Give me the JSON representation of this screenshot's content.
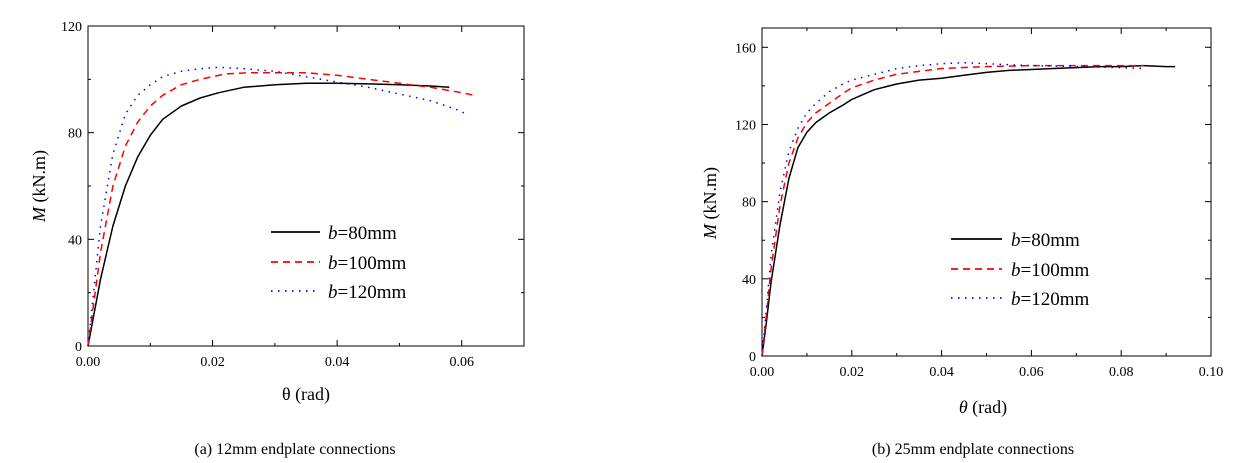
{
  "figure": {
    "captions": [
      "(a) 12mm endplate connections",
      "(b) 25mm endplate connections"
    ]
  },
  "legend_prefix": "b",
  "chart_data": [
    {
      "type": "line",
      "caption": "(a) 12mm endplate connections",
      "xlabel_symbol": "θ",
      "xlabel": " (rad)",
      "ylabel_symbol": "M",
      "ylabel": " (kN.m)",
      "xlim": [
        0,
        0.07
      ],
      "ylim": [
        0,
        120
      ],
      "xticks": [
        0,
        0.02,
        0.04,
        0.06
      ],
      "xtick_labels": [
        "0.00",
        "0.02",
        "0.04",
        "0.06"
      ],
      "yticks": [
        0,
        40,
        80,
        120
      ],
      "ytick_labels": [
        "0",
        "40",
        "80",
        "120"
      ],
      "grid": false,
      "legend_position": "center-right",
      "series": [
        {
          "name": "=80mm",
          "color": "#000000",
          "style": "solid",
          "x": [
            0,
            0.002,
            0.004,
            0.006,
            0.008,
            0.01,
            0.012,
            0.015,
            0.018,
            0.021,
            0.025,
            0.03,
            0.035,
            0.04,
            0.045,
            0.05,
            0.055,
            0.058
          ],
          "y": [
            0,
            25,
            45,
            60,
            71,
            79,
            85,
            90,
            93,
            95,
            97,
            98,
            98.5,
            98.5,
            98.3,
            98,
            97.5,
            97
          ]
        },
        {
          "name": "=100mm",
          "color": "#ff0000",
          "style": "dashed",
          "x": [
            0,
            0.002,
            0.004,
            0.006,
            0.008,
            0.01,
            0.012,
            0.015,
            0.018,
            0.022,
            0.026,
            0.03,
            0.035,
            0.04,
            0.045,
            0.05,
            0.055,
            0.06,
            0.062
          ],
          "y": [
            0,
            35,
            60,
            75,
            84,
            90,
            94,
            98,
            100,
            102,
            102.5,
            102.5,
            102.5,
            101.5,
            100,
            98.5,
            97,
            95,
            94
          ]
        },
        {
          "name": "=120mm",
          "color": "#0000ff",
          "style": "dotted",
          "x": [
            0,
            0.002,
            0.004,
            0.006,
            0.008,
            0.01,
            0.012,
            0.015,
            0.018,
            0.021,
            0.025,
            0.03,
            0.035,
            0.04,
            0.045,
            0.05,
            0.055,
            0.06,
            0.061
          ],
          "y": [
            0,
            45,
            72,
            87,
            94,
            98,
            101,
            103,
            104,
            104.5,
            104,
            103,
            101,
            99,
            97,
            94.5,
            92,
            88,
            86
          ]
        }
      ]
    },
    {
      "type": "line",
      "caption": "(b) 25mm endplate connections",
      "xlabel_symbol": "θ",
      "xlabel": " (rad)",
      "ylabel_symbol": "M",
      "ylabel": " (kN.m)",
      "xlim": [
        0,
        0.1
      ],
      "ylim": [
        0,
        170
      ],
      "xticks": [
        0,
        0.02,
        0.04,
        0.06,
        0.08,
        0.1
      ],
      "xtick_labels": [
        "0.00",
        "0.02",
        "0.04",
        "0.06",
        "0.08",
        "0.10"
      ],
      "yticks": [
        0,
        40,
        80,
        120,
        160
      ],
      "ytick_labels": [
        "0",
        "40",
        "80",
        "120",
        "160"
      ],
      "grid": false,
      "legend_position": "center-right",
      "series": [
        {
          "name": "=80mm",
          "color": "#000000",
          "style": "solid",
          "x": [
            0,
            0.001,
            0.002,
            0.004,
            0.006,
            0.008,
            0.01,
            0.012,
            0.015,
            0.018,
            0.02,
            0.025,
            0.03,
            0.035,
            0.04,
            0.045,
            0.05,
            0.055,
            0.06,
            0.065,
            0.07,
            0.075,
            0.08,
            0.085,
            0.09,
            0.092
          ],
          "y": [
            0,
            18,
            38,
            68,
            92,
            108,
            116,
            121,
            126,
            130,
            133,
            138,
            141,
            143,
            144,
            145.5,
            147,
            148,
            148.5,
            149,
            149.5,
            150,
            150,
            150.5,
            150,
            150
          ]
        },
        {
          "name": "=100mm",
          "color": "#ff0000",
          "style": "dashed",
          "x": [
            0,
            0.001,
            0.002,
            0.004,
            0.006,
            0.008,
            0.01,
            0.012,
            0.015,
            0.018,
            0.02,
            0.025,
            0.03,
            0.035,
            0.04,
            0.05,
            0.06,
            0.07,
            0.08,
            0.085
          ],
          "y": [
            0,
            22,
            45,
            78,
            100,
            113,
            121,
            126,
            131,
            136,
            139,
            143,
            146,
            147.5,
            149,
            150,
            150.5,
            150.5,
            150.5,
            150.5
          ]
        },
        {
          "name": "=120mm",
          "color": "#0000ff",
          "style": "dotted",
          "x": [
            0,
            0.001,
            0.002,
            0.004,
            0.006,
            0.008,
            0.01,
            0.012,
            0.015,
            0.018,
            0.02,
            0.025,
            0.03,
            0.035,
            0.04,
            0.045,
            0.05,
            0.055,
            0.06,
            0.07,
            0.08,
            0.085
          ],
          "y": [
            0,
            25,
            52,
            85,
            106,
            118,
            126,
            131,
            137,
            141,
            143,
            146,
            149,
            150.5,
            151.5,
            152,
            151.5,
            151,
            150.5,
            150,
            149.5,
            149
          ]
        }
      ]
    }
  ]
}
